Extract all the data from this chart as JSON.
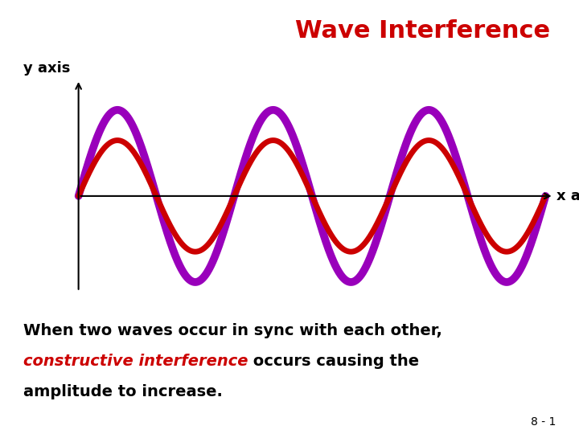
{
  "title": "Wave Interference",
  "title_color": "#CC0000",
  "title_fontsize": 22,
  "title_fontweight": "bold",
  "title_fontstyle": "normal",
  "background_color": "#FFFFFF",
  "wave1_color": "#CC0000",
  "wave2_color": "#9900BB",
  "wave1_amplitude": 0.55,
  "wave2_amplitude": 0.85,
  "wave_frequency": 3,
  "wave1_lw": 5,
  "wave2_lw": 7,
  "xmin": -0.3,
  "xmax": 6.8,
  "ymin": -1.15,
  "ymax": 1.25,
  "yaxis_label": "y axis",
  "xaxis_label": "x axis",
  "axis_label_fontsize": 13,
  "body_text_line1": "When two waves occur in sync with each other,",
  "body_text_line2_normal": " occurs causing the",
  "body_text_line2_italic": "constructive interference",
  "body_text_line3": "amplitude to increase.",
  "body_text_fontsize": 14,
  "body_text_color": "#000000",
  "body_italic_color": "#CC0000",
  "footnote": "8 - 1",
  "footnote_fontsize": 10
}
